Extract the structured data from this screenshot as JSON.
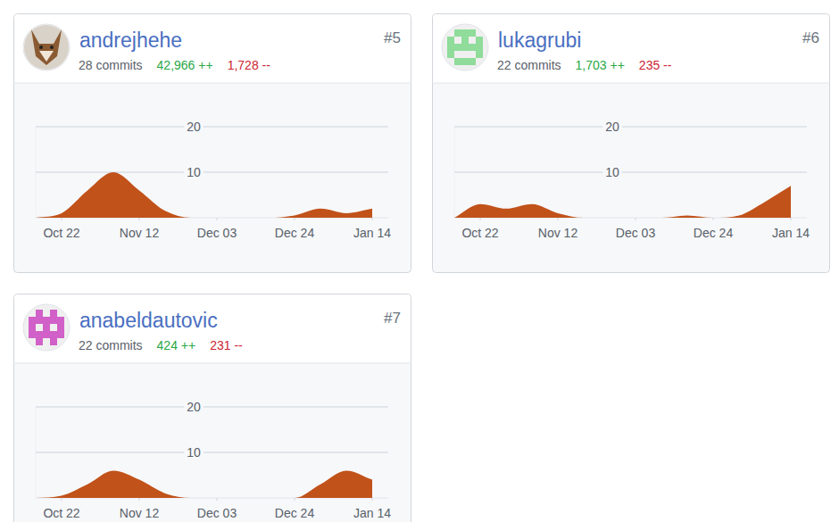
{
  "cards": [
    {
      "rank": "#5",
      "username": "andrejhehe",
      "commits": "28 commits",
      "additions": "42,966 ++",
      "deletions": "1,728 --"
    },
    {
      "rank": "#6",
      "username": "lukagrubi",
      "commits": "22 commits",
      "additions": "1,703 ++",
      "deletions": "235 --"
    },
    {
      "rank": "#7",
      "username": "anabeldautovic",
      "commits": "22 commits",
      "additions": "424 ++",
      "deletions": "231 --"
    }
  ],
  "chart_data": [
    {
      "type": "area",
      "categories": [
        null,
        "Oct 22",
        null,
        null,
        "Nov 12",
        null,
        null,
        "Dec 03",
        null,
        null,
        "Dec 24",
        null,
        null,
        "Jan 14"
      ],
      "values": [
        0,
        1,
        6,
        10,
        6,
        1.5,
        0,
        0,
        0,
        0,
        0.5,
        2,
        1,
        2
      ],
      "color": "#c1521a",
      "ylim": [
        0,
        20
      ],
      "yticks": [
        10,
        20
      ],
      "grid": true
    },
    {
      "type": "area",
      "categories": [
        null,
        "Oct 22",
        null,
        null,
        "Nov 12",
        null,
        null,
        "Dec 03",
        null,
        null,
        "Dec 24",
        null,
        null,
        "Jan 14"
      ],
      "values": [
        0,
        3,
        2,
        3,
        1,
        0,
        0,
        0,
        0,
        0.5,
        0,
        0.5,
        3.5,
        7
      ],
      "color": "#c1521a",
      "ylim": [
        0,
        20
      ],
      "yticks": [
        10,
        20
      ],
      "grid": true
    },
    {
      "type": "area",
      "categories": [
        null,
        "Oct 22",
        null,
        null,
        "Nov 12",
        null,
        null,
        "Dec 03",
        null,
        null,
        "Dec 24",
        null,
        null,
        "Jan 14"
      ],
      "values": [
        0,
        0.5,
        3,
        6,
        4,
        1,
        0,
        0,
        0,
        0,
        0,
        3,
        6,
        4
      ],
      "color": "#c1521a",
      "ylim": [
        0,
        20
      ],
      "yticks": [
        10,
        20
      ],
      "grid": true
    }
  ]
}
